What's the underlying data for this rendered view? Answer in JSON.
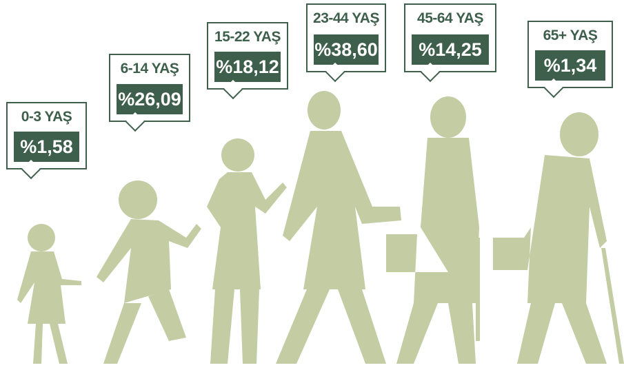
{
  "groups": [
    {
      "label": "0-3 YAŞ",
      "value": "%1,58"
    },
    {
      "label": "6-14 YAŞ",
      "value": "%26,09"
    },
    {
      "label": "15-22 YAŞ",
      "value": "%18,12"
    },
    {
      "label": "23-44 YAŞ",
      "value": "%38,60"
    },
    {
      "label": "45-64 YAŞ",
      "value": "%14,25"
    },
    {
      "label": "65+ YAŞ",
      "value": "%1,34"
    }
  ]
}
